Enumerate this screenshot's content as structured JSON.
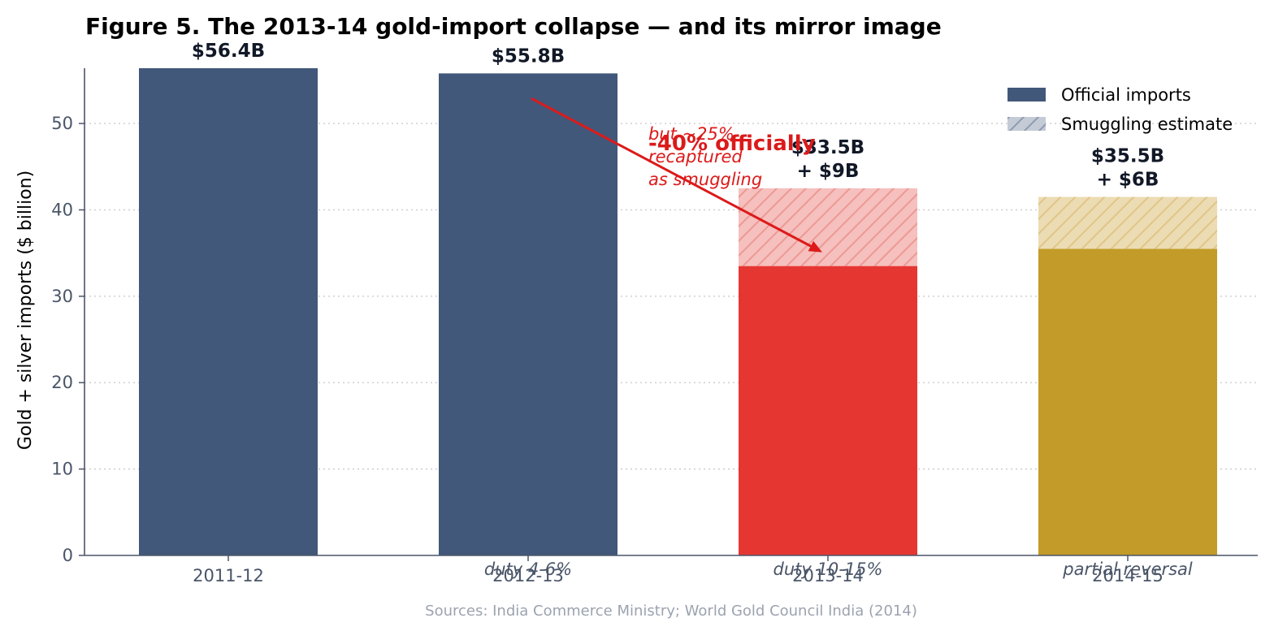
{
  "chart_data": {
    "type": "bar",
    "stacked": true,
    "title": "Figure 5. The 2013-14 gold-import collapse — and its mirror image",
    "ylabel": "Gold + silver imports ($ billion)",
    "xlabel": "",
    "ylim": [
      0,
      56.4
    ],
    "yticks": [
      0,
      10,
      20,
      30,
      40,
      50
    ],
    "grid": "y-dotted",
    "legend_position": "top-right",
    "categories": [
      "2011-12",
      "2012-13",
      "2013-14",
      "2014-15"
    ],
    "official": [
      56.4,
      55.8,
      33.5,
      35.5
    ],
    "smuggling": [
      0,
      0,
      9,
      6
    ],
    "bar_colors": [
      "#42587a",
      "#42587a",
      "#e63632",
      "#c29b28"
    ],
    "smuggling_colors": [
      "#c4cbd6",
      "#c4cbd6",
      "#f5c0be",
      "#ecdcb4"
    ],
    "hatch_colors": [
      "#8d9bb0",
      "#8d9bb0",
      "#ee9894",
      "#e0c585"
    ],
    "value_labels": [
      [
        "$56.4B"
      ],
      [
        "$55.8B"
      ],
      [
        "$33.5B",
        "+ $9B"
      ],
      [
        "$35.5B",
        "+ $6B"
      ]
    ],
    "period_notes": [
      "",
      "duty 4-6%",
      "duty 10-15%",
      "partial reversal"
    ],
    "annotations": {
      "drop_label": "-40% officially",
      "smuggling_note": [
        "but ~25%",
        "recaptured",
        "as smuggling"
      ],
      "arrow_color": "#dc1a1a"
    },
    "legend": {
      "items": [
        {
          "label": "Official imports",
          "color": "#42587a"
        },
        {
          "label": "Smuggling estimate",
          "color": "#c4cbd6",
          "hatch": "#8d9bb0"
        }
      ]
    },
    "source": "Sources: India Commerce Ministry; World Gold Council India (2014)"
  }
}
